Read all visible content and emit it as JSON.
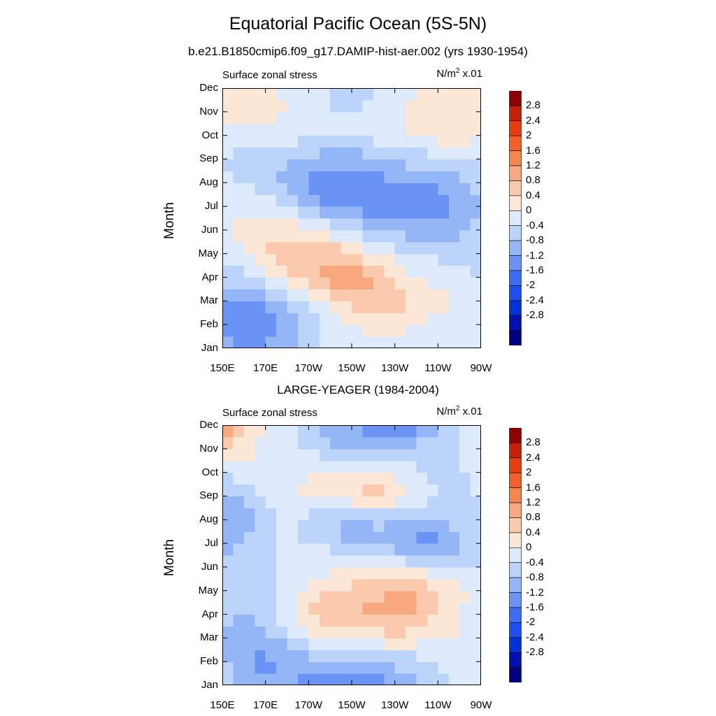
{
  "title": "Equatorial Pacific Ocean (5S-5N)",
  "subtitle": "b.e21.B1850cmip6.f09_g17.DAMIP-hist-aer.002 (yrs 1930-1954)",
  "colors": [
    "#00007f",
    "#0011b2",
    "#0032d8",
    "#1e50f0",
    "#3c6ef0",
    "#6a94f4",
    "#94b6f7",
    "#bcd3fa",
    "#ddeafc",
    "#fde8d8",
    "#fbcaae",
    "#f8a87e",
    "#f58650",
    "#f2612a",
    "#e63c10",
    "#c42006",
    "#8c0000"
  ],
  "colorbar_labels": [
    "2.8",
    "2.4",
    "2",
    "1.6",
    "1.2",
    "0.8",
    "0.4",
    "0",
    "-0.4",
    "-0.8",
    "-1.2",
    "-1.6",
    "-2",
    "-2.4",
    "-2.8"
  ],
  "panels": [
    {
      "panel_title": "",
      "left_label": "Surface zonal stress",
      "units_base": "N/m",
      "units_exp": "2",
      "units_scale": " x.01",
      "ylabel": "Month"
    },
    {
      "panel_title": "LARGE-YEAGER (1984-2004)",
      "left_label": "Surface zonal stress",
      "units_base": "N/m",
      "units_exp": "2",
      "units_scale": " x.01",
      "ylabel": "Month"
    }
  ],
  "chart_data": [
    {
      "type": "heatmap",
      "title": "b.e21.B1850cmip6.f09_g17.DAMIP-hist-aer.002 (yrs 1930-1954)",
      "variable": "Surface zonal stress",
      "units": "N/m2 x.01",
      "xlabel": "",
      "ylabel": "Month",
      "x_ticks": [
        "150E",
        "170E",
        "170W",
        "150W",
        "130W",
        "110W",
        "90W"
      ],
      "y_ticks": [
        "Jan",
        "Feb",
        "Mar",
        "Apr",
        "May",
        "Jun",
        "Jul",
        "Aug",
        "Sep",
        "Oct",
        "Nov",
        "Dec"
      ],
      "x": [
        150,
        160,
        170,
        180,
        190,
        200,
        210,
        220,
        230,
        240,
        250,
        260,
        270
      ],
      "y": [
        "Jan",
        "Feb",
        "Mar",
        "Apr",
        "May",
        "Jun",
        "Jul",
        "Aug",
        "Sep",
        "Oct",
        "Nov",
        "Dec"
      ],
      "levels": [
        -2.8,
        -2.4,
        -2.0,
        -1.6,
        -1.2,
        -0.8,
        -0.4,
        0,
        0.4,
        0.8,
        1.2,
        1.6,
        2.0,
        2.4,
        2.8
      ],
      "z": [
        [
          -0.6,
          -0.8,
          -0.8,
          -0.5,
          -0.2,
          0.1,
          0.3,
          0.3,
          0.3,
          0.3,
          0.3,
          0.2,
          0.1
        ],
        [
          -1.0,
          -1.3,
          -1.1,
          -0.7,
          -0.3,
          0.1,
          0.4,
          0.5,
          0.5,
          0.4,
          0.3,
          0.2,
          0.1
        ],
        [
          -0.7,
          -0.8,
          -0.7,
          -0.3,
          0.2,
          0.6,
          0.9,
          1.1,
          1.1,
          0.7,
          0.6,
          0.4,
          0.1
        ],
        [
          -0.2,
          -0.1,
          0.3,
          0.7,
          1.1,
          1.4,
          1.6,
          1.3,
          0.7,
          0.4,
          0.2,
          0.1,
          0.0
        ],
        [
          0.1,
          0.4,
          0.8,
          1.1,
          1.2,
          1.1,
          0.8,
          0.5,
          0.2,
          0.0,
          -0.1,
          -0.2,
          -0.2
        ],
        [
          0.3,
          0.5,
          0.7,
          0.7,
          0.5,
          0.2,
          0.0,
          -0.3,
          -0.5,
          -0.6,
          -0.6,
          -0.5,
          -0.3
        ],
        [
          0.3,
          0.3,
          0.2,
          0.0,
          -0.4,
          -0.8,
          -1.0,
          -1.1,
          -1.3,
          -1.3,
          -1.1,
          -0.8,
          -0.4
        ],
        [
          0.1,
          0.0,
          -0.2,
          -0.5,
          -0.9,
          -1.2,
          -1.2,
          -1.0,
          -0.9,
          -0.8,
          -0.7,
          -0.5,
          -0.3
        ],
        [
          0.0,
          -0.2,
          -0.3,
          -0.4,
          -0.5,
          -0.6,
          -0.6,
          -0.5,
          -0.3,
          -0.2,
          -0.1,
          -0.1,
          0.0
        ],
        [
          0.3,
          0.3,
          0.3,
          0.2,
          0.1,
          0.0,
          0.0,
          0.1,
          0.3,
          0.5,
          0.6,
          0.6,
          0.5
        ],
        [
          0.5,
          0.5,
          0.5,
          0.4,
          0.2,
          0.0,
          0.0,
          0.1,
          0.3,
          0.5,
          0.5,
          0.5,
          0.4
        ],
        [
          0.5,
          0.5,
          0.4,
          0.3,
          0.1,
          0.0,
          -0.1,
          -0.1,
          0.1,
          0.4,
          0.5,
          0.5,
          0.4
        ]
      ]
    },
    {
      "type": "heatmap",
      "title": "LARGE-YEAGER (1984-2004)",
      "variable": "Surface zonal stress",
      "units": "N/m2 x.01",
      "xlabel": "",
      "ylabel": "Month",
      "x_ticks": [
        "150E",
        "170E",
        "170W",
        "150W",
        "130W",
        "110W",
        "90W"
      ],
      "y_ticks": [
        "Jan",
        "Feb",
        "Mar",
        "Apr",
        "May",
        "Jun",
        "Jul",
        "Aug",
        "Sep",
        "Oct",
        "Nov",
        "Dec"
      ],
      "x": [
        150,
        160,
        170,
        180,
        190,
        200,
        210,
        220,
        230,
        240,
        250,
        260,
        270
      ],
      "y": [
        "Jan",
        "Feb",
        "Mar",
        "Apr",
        "May",
        "Jun",
        "Jul",
        "Aug",
        "Sep",
        "Oct",
        "Nov",
        "Dec"
      ],
      "levels": [
        -2.8,
        -2.4,
        -2.0,
        -1.6,
        -1.2,
        -0.8,
        -0.4,
        0,
        0.4,
        0.8,
        1.2,
        1.6,
        2.0,
        2.4,
        2.8
      ],
      "z": [
        [
          -0.1,
          -0.6,
          -0.7,
          -0.7,
          -1.0,
          -1.2,
          -1.0,
          -1.2,
          -0.8,
          -0.4,
          -0.1,
          0.1,
          0.2
        ],
        [
          -0.3,
          -0.8,
          -0.9,
          -0.8,
          -0.5,
          -0.4,
          -0.3,
          -0.4,
          -0.3,
          -0.2,
          0.0,
          0.2,
          0.3
        ],
        [
          -0.4,
          -0.7,
          -0.6,
          -0.2,
          0.2,
          0.4,
          0.6,
          0.6,
          0.7,
          0.6,
          0.5,
          0.4,
          0.2
        ],
        [
          -0.3,
          -0.4,
          -0.2,
          0.2,
          0.8,
          1.0,
          1.2,
          1.3,
          1.4,
          1.1,
          0.7,
          0.4,
          0.2
        ],
        [
          -0.3,
          -0.4,
          -0.2,
          0.1,
          0.6,
          0.8,
          1.0,
          1.1,
          1.2,
          1.3,
          0.9,
          0.5,
          0.2
        ],
        [
          -0.2,
          -0.2,
          -0.1,
          0.1,
          0.2,
          0.3,
          0.3,
          0.4,
          0.3,
          0.2,
          0.1,
          0.0,
          -0.1
        ],
        [
          -0.5,
          -0.4,
          -0.1,
          0.1,
          0.0,
          -0.1,
          -0.5,
          -0.5,
          -0.6,
          -0.9,
          -0.9,
          -0.5,
          -0.2
        ],
        [
          -0.8,
          -0.6,
          -0.2,
          0.1,
          -0.2,
          -0.4,
          -0.6,
          -0.3,
          -0.4,
          -0.6,
          -0.5,
          -0.2,
          0.0
        ],
        [
          -0.5,
          -0.3,
          0.1,
          0.2,
          0.5,
          0.6,
          0.7,
          1.0,
          0.6,
          0.3,
          0.0,
          -0.2,
          0.0
        ],
        [
          0.0,
          0.2,
          0.3,
          0.3,
          0.4,
          0.5,
          0.6,
          0.7,
          0.4,
          0.1,
          -0.1,
          -0.1,
          0.3
        ],
        [
          1.0,
          0.6,
          0.3,
          0.1,
          0.0,
          -0.3,
          -0.5,
          -0.4,
          -0.5,
          -0.3,
          -0.2,
          0.0,
          0.1
        ],
        [
          1.7,
          0.8,
          0.3,
          0.1,
          -0.2,
          -0.6,
          -0.8,
          -1.0,
          -1.2,
          -0.9,
          -0.4,
          0.0,
          0.1
        ]
      ]
    }
  ]
}
